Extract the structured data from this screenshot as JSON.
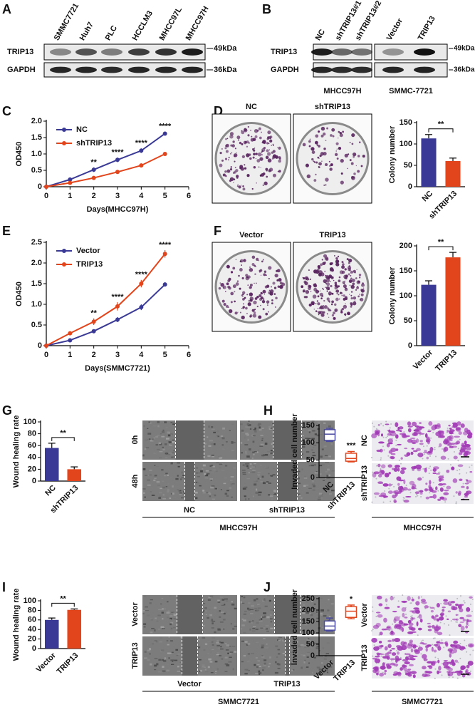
{
  "panels": {
    "A": {
      "letter": "A",
      "lanes": [
        "SMMC7721",
        "Huh7",
        "PLC",
        "HCCLM3",
        "MHCC97L",
        "MHCC97H"
      ],
      "rows": [
        "TRIP13",
        "GAPDH"
      ],
      "markers": [
        "49kDa",
        "36kDa"
      ]
    },
    "B": {
      "letter": "B",
      "lanes": [
        "NC",
        "shTRIP13#1",
        "shTRIP13#2",
        "Vector",
        "TRIP13"
      ],
      "rows": [
        "TRIP13",
        "GAPDH"
      ],
      "markers": [
        "49kDa",
        "36kDa"
      ],
      "groups": [
        "MHCC97H",
        "SMMC-7721"
      ]
    },
    "C": {
      "letter": "C"
    },
    "D": {
      "letter": "D",
      "images": [
        "NC",
        "shTRIP13"
      ]
    },
    "E": {
      "letter": "E"
    },
    "F": {
      "letter": "F",
      "images": [
        "Vector",
        "TRIP13"
      ]
    },
    "G": {
      "letter": "G",
      "rows": [
        "0h",
        "48h"
      ],
      "columns": [
        "NC",
        "shTRIP13"
      ],
      "cell_line": "MHCC97H"
    },
    "H": {
      "letter": "H",
      "rows": [
        "NC",
        "shTRIP13"
      ],
      "cell_line": "MHCC97H"
    },
    "I": {
      "letter": "I",
      "rows": [
        "Vector",
        "TRIP13"
      ],
      "columns": [
        "Vector",
        "TRIP13"
      ],
      "cell_line": "SMMC7721"
    },
    "J": {
      "letter": "J",
      "rows": [
        "Vector",
        "TRIP13"
      ],
      "cell_line": "SMMC7721"
    }
  },
  "chart_data": [
    {
      "type": "line",
      "xlabel": "Days(MHCC97H)",
      "ylabel": "OD450",
      "x": [
        0,
        1,
        2,
        3,
        4,
        5
      ],
      "xlim": [
        0,
        6
      ],
      "xticks": [
        0,
        1,
        2,
        3,
        4,
        5,
        6
      ],
      "ylim": [
        0,
        2
      ],
      "yticks": [
        0,
        0.5,
        {
          "value": 1,
          "label": "1.0"
        },
        1.5,
        {
          "value": 2,
          "label": "2.0"
        }
      ],
      "legend": "upper left",
      "series": [
        {
          "name": "NC",
          "color": "#3a3a96",
          "values": [
            0,
            0.22,
            0.52,
            0.82,
            1.1,
            1.62
          ],
          "errors": [
            0,
            0.03,
            0.07,
            0.07,
            0.07,
            0.06
          ]
        },
        {
          "name": "shTRIP13",
          "color": "#e2451c",
          "values": [
            0,
            0.12,
            0.27,
            0.45,
            0.65,
            1.0
          ],
          "errors": [
            0,
            0.02,
            0.03,
            0.05,
            0.06,
            0.05
          ]
        }
      ],
      "significance": [
        null,
        null,
        "**",
        "****",
        "****",
        "****"
      ]
    },
    {
      "type": "bar",
      "ylabel": "Colony number",
      "categories": [
        "NC",
        "shTRIP13"
      ],
      "values": [
        113,
        60
      ],
      "errors": [
        9,
        7
      ],
      "colors": [
        "#3a3a96",
        "#e2451c"
      ],
      "ylim": [
        0,
        150
      ],
      "yticks": [
        0,
        50,
        100,
        150
      ],
      "significance": "**"
    },
    {
      "type": "line",
      "xlabel": "Days(SMMC7721)",
      "ylabel": "OD450",
      "x": [
        0,
        1,
        2,
        3,
        4,
        5
      ],
      "xlim": [
        0,
        6
      ],
      "xticks": [
        0,
        1,
        2,
        3,
        4,
        5,
        6
      ],
      "ylim": [
        0,
        2.5
      ],
      "yticks": [
        0,
        0.5,
        {
          "value": 1,
          "label": "1.0"
        },
        1.5,
        {
          "value": 2,
          "label": "2.0"
        },
        2.5
      ],
      "legend": "upper left",
      "series": [
        {
          "name": "Vector",
          "color": "#3a3a96",
          "values": [
            0,
            0.13,
            0.35,
            0.63,
            0.93,
            1.48
          ],
          "errors": [
            0,
            0.02,
            0.03,
            0.06,
            0.07,
            0.05
          ]
        },
        {
          "name": "TRIP13",
          "color": "#e2451c",
          "values": [
            0,
            0.3,
            0.58,
            0.95,
            1.5,
            2.22
          ],
          "errors": [
            0,
            0.04,
            0.08,
            0.1,
            0.09,
            0.09
          ]
        }
      ],
      "significance": [
        null,
        null,
        "**",
        "****",
        "****",
        "****"
      ]
    },
    {
      "type": "bar",
      "ylabel": "Colony number",
      "categories": [
        "Vector",
        "TRIP13"
      ],
      "values": [
        122,
        177
      ],
      "errors": [
        8,
        10
      ],
      "colors": [
        "#3a3a96",
        "#e2451c"
      ],
      "ylim": [
        0,
        200
      ],
      "yticks": [
        0,
        50,
        100,
        150,
        200
      ],
      "significance": "**"
    },
    {
      "type": "bar",
      "ylabel": "Wound healing rate",
      "categories": [
        "NC",
        "shTRIP13"
      ],
      "values": [
        56,
        20
      ],
      "errors": [
        8,
        4
      ],
      "colors": [
        "#3a3a96",
        "#e2451c"
      ],
      "ylim": [
        0,
        100
      ],
      "yticks": [
        0,
        20,
        40,
        60,
        80,
        100
      ],
      "significance": "**"
    },
    {
      "type": "box",
      "ylabel": "Invaded cell number",
      "categories": [
        "NC",
        "shTRIP13"
      ],
      "boxes": [
        {
          "min": 104,
          "q1": 107,
          "median": 125,
          "q3": 138,
          "max": 142
        },
        {
          "min": 45,
          "q1": 47,
          "median": 55,
          "q3": 70,
          "max": 75
        }
      ],
      "colors": [
        "#4a4aa0",
        "#e2451c"
      ],
      "ylim": [
        0,
        150
      ],
      "yticks": [
        0,
        50,
        100,
        150
      ],
      "significance": "***"
    },
    {
      "type": "bar",
      "ylabel": "Wound healing rate",
      "categories": [
        "Vector",
        "TRIP13"
      ],
      "values": [
        60,
        81
      ],
      "errors": [
        4,
        2
      ],
      "colors": [
        "#3a3a96",
        "#e2451c"
      ],
      "ylim": [
        0,
        100
      ],
      "yticks": [
        0,
        20,
        40,
        60,
        80,
        100
      ],
      "significance": "**"
    },
    {
      "type": "box",
      "ylabel": "Invaded cell number",
      "categories": [
        "Vector",
        "TRIP13"
      ],
      "boxes": [
        {
          "min": 108,
          "q1": 112,
          "median": 130,
          "q3": 152,
          "max": 165
        },
        {
          "min": 162,
          "q1": 168,
          "median": 195,
          "q3": 215,
          "max": 222
        }
      ],
      "colors": [
        "#4a4aa0",
        "#e2451c"
      ],
      "ylim": [
        0,
        250
      ],
      "yticks": [
        0,
        50,
        100,
        150,
        200,
        250
      ],
      "significance": "*"
    }
  ]
}
